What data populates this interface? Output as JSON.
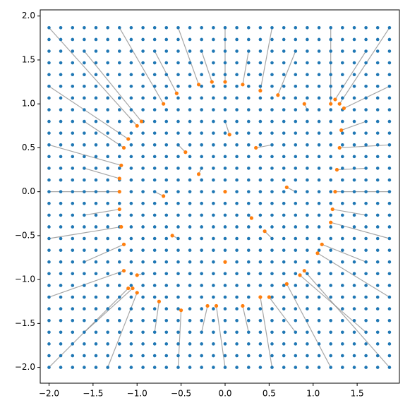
{
  "chart_data": {
    "type": "scatter",
    "xlim": [
      -2.1,
      1.98
    ],
    "ylim": [
      -2.18,
      2.07
    ],
    "xticks": [
      {
        "value": -2.0,
        "label": "−2.0"
      },
      {
        "value": -1.5,
        "label": "−1.5"
      },
      {
        "value": -1.0,
        "label": "−1.0"
      },
      {
        "value": -0.5,
        "label": "−0.5"
      },
      {
        "value": 0.0,
        "label": "0.0"
      },
      {
        "value": 0.5,
        "label": "0.5"
      },
      {
        "value": 1.0,
        "label": "1.0"
      },
      {
        "value": 1.5,
        "label": "1.5"
      }
    ],
    "yticks": [
      {
        "value": -2.0,
        "label": "−2.0"
      },
      {
        "value": -1.5,
        "label": "−1.5"
      },
      {
        "value": -1.0,
        "label": "−1.0"
      },
      {
        "value": -0.5,
        "label": "−0.5"
      },
      {
        "value": 0.0,
        "label": "0.0"
      },
      {
        "value": 0.5,
        "label": "0.5"
      },
      {
        "value": 1.0,
        "label": "1.0"
      },
      {
        "value": 1.5,
        "label": "1.5"
      },
      {
        "value": 2.0,
        "label": "2.0"
      }
    ],
    "grid_color": "#1f77b4",
    "grid_values": [
      -2.0,
      -1.867,
      -1.733,
      -1.6,
      -1.467,
      -1.333,
      -1.2,
      -1.067,
      -0.933,
      -0.8,
      -0.667,
      -0.533,
      -0.4,
      -0.267,
      -0.133,
      0.0,
      0.133,
      0.267,
      0.4,
      0.533,
      0.667,
      0.8,
      0.933,
      1.067,
      1.2,
      1.333,
      1.467,
      1.6,
      1.733,
      1.867
    ],
    "mapped": {
      "color": "#ff7f0e",
      "line_color": "#808080",
      "x0": [
        -2,
        -2,
        -2,
        -2,
        -2,
        -2,
        -2,
        -1.333,
        -0.533,
        0,
        0.533,
        1.2,
        1.867,
        1.867,
        1.867,
        1.867,
        1.867,
        1.867,
        1.867,
        1.2,
        0.533,
        0,
        -0.533,
        -1.2,
        -1.6,
        -1.6,
        1.6,
        1.6,
        -1.6,
        -1.6,
        -1.6,
        -1.6,
        1.6,
        1.6,
        1.6,
        1.6,
        0.267,
        -0.267,
        0.8,
        -0.8,
        0.267,
        -0.267,
        0.8,
        -0.8,
        0,
        -0.533,
        0.533,
        -0.533,
        0.533,
        0,
        0,
        -0.8,
        0.8,
        -0.267,
        0.267,
        -0.933,
        0.933
      ],
      "y0": [
        1.867,
        1.2,
        0.533,
        0,
        -0.533,
        -1.2,
        -2,
        -2,
        -2,
        -2,
        -2,
        -2,
        -2,
        -1.2,
        -0.533,
        0,
        0.533,
        1.2,
        1.867,
        1.867,
        1.867,
        1.867,
        1.867,
        1.867,
        1.6,
        -1.6,
        -1.6,
        1.6,
        0.267,
        -0.267,
        0.8,
        -0.8,
        0.267,
        -0.267,
        0.8,
        -0.8,
        1.6,
        1.6,
        1.6,
        1.6,
        -1.6,
        -1.6,
        -1.6,
        -1.6,
        0,
        0.533,
        0.533,
        -0.533,
        -0.533,
        0.8,
        -0.8,
        0,
        0,
        0.267,
        -0.267,
        -0.933,
        0.933
      ],
      "x": [
        -1.0,
        -1.1,
        -1.18,
        -1.2,
        -1.18,
        -1.15,
        -1.1,
        -1.0,
        -0.5,
        -0.1,
        0.4,
        0.7,
        0.9,
        1.05,
        1.2,
        1.25,
        1.3,
        1.35,
        1.3,
        1.2,
        0.4,
        0.0,
        -0.3,
        -0.7,
        -0.95,
        -1.05,
        0.85,
        1.25,
        -1.2,
        -1.2,
        -1.15,
        -1.15,
        1.27,
        1.22,
        1.32,
        1.1,
        0.2,
        -0.15,
        0.6,
        -0.55,
        0.2,
        -0.2,
        0.5,
        -0.75,
        0.0,
        -0.45,
        0.35,
        -0.6,
        0.45,
        0.05,
        0.0,
        -0.7,
        0.7,
        -0.3,
        0.3,
        -1.0,
        0.9
      ],
      "y": [
        0.75,
        0.6,
        0.3,
        0.0,
        -0.4,
        -0.9,
        -1.1,
        -1.15,
        -1.35,
        -1.3,
        -1.2,
        -1.05,
        -0.9,
        -0.7,
        -0.35,
        0.0,
        0.5,
        0.95,
        1.0,
        1.0,
        1.15,
        1.25,
        1.22,
        1.0,
        0.8,
        -1.1,
        -0.95,
        1.05,
        0.15,
        -0.2,
        0.5,
        -0.6,
        0.25,
        -0.2,
        0.7,
        -0.6,
        1.22,
        1.25,
        1.1,
        1.12,
        -1.3,
        -1.3,
        -1.2,
        -1.25,
        0.0,
        0.45,
        0.5,
        -0.5,
        -0.45,
        0.65,
        -0.8,
        -0.05,
        0.05,
        0.2,
        -0.3,
        -0.95,
        1.0
      ]
    }
  }
}
